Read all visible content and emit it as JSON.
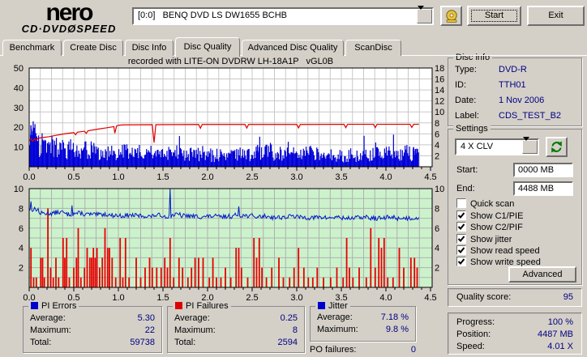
{
  "window": {
    "logo": {
      "name": "nero",
      "cd": "CD·DVD",
      "bolt": "Ø",
      "speed": "SPEED"
    },
    "drive_select": "[0:0]   BENQ DVD LS DW1655 BCHB",
    "start_button": "Start",
    "exit_button": "Exit"
  },
  "tabs": [
    {
      "label": "Benchmark",
      "active": false
    },
    {
      "label": "Create Disc",
      "active": false
    },
    {
      "label": "Disc Info",
      "active": false
    },
    {
      "label": "Disc Quality",
      "active": true
    },
    {
      "label": "Advanced Disc Quality",
      "active": false
    },
    {
      "label": "ScanDisc",
      "active": false
    }
  ],
  "disc_info": {
    "title": "Disc info",
    "rows": [
      {
        "label": "Type:",
        "value": "DVD-R"
      },
      {
        "label": "ID:",
        "value": "TTH01"
      },
      {
        "label": "Date:",
        "value": "1 Nov 2006"
      },
      {
        "label": "Label:",
        "value": "CDS_TEST_B2"
      }
    ]
  },
  "settings": {
    "title": "Settings",
    "speed_select": "4 X CLV",
    "start_label": "Start:",
    "start_value": "0000 MB",
    "end_label": "End:",
    "end_value": "4488 MB",
    "checkboxes": [
      {
        "label": "Quick scan",
        "checked": false
      },
      {
        "label": "Show C1/PIE",
        "checked": true
      },
      {
        "label": "Show C2/PIF",
        "checked": true
      },
      {
        "label": "Show jitter",
        "checked": true
      },
      {
        "label": "Show read speed",
        "checked": true
      },
      {
        "label": "Show write speed",
        "checked": true
      }
    ],
    "advanced_button": "Advanced"
  },
  "quality": {
    "label": "Quality score:",
    "value": "95"
  },
  "progress": {
    "rows": [
      {
        "label": "Progress:",
        "value": "100 %"
      },
      {
        "label": "Position:",
        "value": "4487 MB"
      },
      {
        "label": "Speed:",
        "value": "4.01 X"
      }
    ]
  },
  "stats": {
    "pi_errors": {
      "title": "PI Errors",
      "color": "#0000cc",
      "rows": [
        {
          "label": "Average:",
          "value": "5.30"
        },
        {
          "label": "Maximum:",
          "value": "22"
        },
        {
          "label": "Total:",
          "value": "59738"
        }
      ]
    },
    "pi_failures": {
      "title": "PI Failures",
      "color": "#dd0000",
      "rows": [
        {
          "label": "Average:",
          "value": "0.25"
        },
        {
          "label": "Maximum:",
          "value": "8"
        },
        {
          "label": "Total:",
          "value": "2594"
        }
      ]
    },
    "jitter": {
      "title": "Jitter",
      "color": "#0000cc",
      "rows": [
        {
          "label": "Average:",
          "value": "7.18 %"
        },
        {
          "label": "Maximum:",
          "value": "9.8 %"
        }
      ]
    },
    "po_failures": {
      "label": "PO failures:",
      "value": "0"
    }
  },
  "chart_data": [
    {
      "type": "bar",
      "title": "recorded with LITE-ON DVDRW LH-18A1P   vGL0B",
      "x_range": [
        0,
        4.5
      ],
      "x_ticks": [
        "0.0",
        "0.5",
        "1.0",
        "1.5",
        "2.0",
        "2.5",
        "3.0",
        "3.5",
        "4.0",
        "4.5"
      ],
      "data_end": 4.37,
      "left_axis": {
        "series": "PI Errors",
        "range": [
          0,
          50
        ],
        "ticks": [
          10,
          20,
          30,
          40,
          50
        ]
      },
      "right_axis": {
        "series": "Read speed (X)",
        "range": [
          0,
          18
        ],
        "ticks": [
          2,
          4,
          6,
          8,
          10,
          12,
          14,
          16,
          18
        ]
      },
      "bg": "#ffffff",
      "grid": "#c8c8c8",
      "bar_color": "#0000d8",
      "line_color": "#e00000",
      "noise_seed": 77,
      "pie_envelope": [
        15,
        12,
        10,
        9,
        8.5,
        7.5,
        8,
        7.5,
        7,
        7.5,
        7,
        6.5,
        7,
        6.5,
        6,
        6.5,
        7,
        6.5,
        6,
        6.5,
        6,
        6,
        6.5,
        6,
        5.5,
        6.5,
        7,
        7.5,
        6.5,
        6,
        6,
        6.5,
        6,
        5.5,
        6,
        5.5,
        6,
        6.5,
        6,
        6,
        6.5,
        6,
        7,
        8
      ],
      "pie_peaks": [
        [
          0.02,
          21
        ],
        [
          0.04,
          18
        ],
        [
          0.06,
          16
        ],
        [
          0.08,
          15
        ],
        [
          2.56,
          11
        ],
        [
          2.58,
          10
        ],
        [
          4.31,
          10
        ],
        [
          4.33,
          9
        ]
      ],
      "gray_markers": [
        0.13,
        0.27
      ],
      "speed_line": [
        [
          0,
          13.2
        ],
        [
          0.02,
          14
        ],
        [
          0.04,
          13
        ],
        [
          0.06,
          14.2
        ],
        [
          0.08,
          13.4
        ],
        [
          0.1,
          14.4
        ],
        [
          0.15,
          14.8
        ],
        [
          0.22,
          15.2
        ],
        [
          0.3,
          15.9
        ],
        [
          0.4,
          16.7
        ],
        [
          0.5,
          17.3
        ],
        [
          0.52,
          16.2
        ],
        [
          0.54,
          17.5
        ],
        [
          0.62,
          18.0
        ],
        [
          0.64,
          16.9
        ],
        [
          0.66,
          18.2
        ],
        [
          0.75,
          18.9
        ],
        [
          0.85,
          19.6
        ],
        [
          0.95,
          20.3
        ],
        [
          0.96,
          17.0
        ],
        [
          0.98,
          20.6
        ],
        [
          1.0,
          21.0
        ],
        [
          1.05,
          21.2
        ],
        [
          1.38,
          21.3
        ],
        [
          1.4,
          12.2
        ],
        [
          1.42,
          21.3
        ],
        [
          1.9,
          21.4
        ],
        [
          1.92,
          19.5
        ],
        [
          1.94,
          21.4
        ],
        [
          2.42,
          21.4
        ],
        [
          2.44,
          19.6
        ],
        [
          2.46,
          21.4
        ],
        [
          3.0,
          21.4
        ],
        [
          3.02,
          19.7
        ],
        [
          3.04,
          21.4
        ],
        [
          3.53,
          21.5
        ],
        [
          3.55,
          19.8
        ],
        [
          3.57,
          21.5
        ],
        [
          3.86,
          21.5
        ],
        [
          3.88,
          19.8
        ],
        [
          3.9,
          21.5
        ],
        [
          4.27,
          21.5
        ],
        [
          4.29,
          19.9
        ],
        [
          4.31,
          21.5
        ],
        [
          4.37,
          21.5
        ]
      ]
    },
    {
      "type": "line+bar",
      "x_range": [
        0,
        4.5
      ],
      "x_ticks": [
        "0.0",
        "0.5",
        "1.0",
        "1.5",
        "2.0",
        "2.5",
        "3.0",
        "3.5",
        "4.0",
        "4.5"
      ],
      "data_end": 4.37,
      "left_axis": {
        "series": "Jitter (%) / PI Failures",
        "range": [
          0,
          10
        ],
        "ticks": [
          2,
          4,
          6,
          8,
          10
        ]
      },
      "right_axis": {
        "range": [
          0,
          10
        ],
        "ticks": [
          2,
          4,
          6,
          8,
          10
        ]
      },
      "bg": "#ccf2cc",
      "grid": "#b0b0b0",
      "bar_color": "#e80000",
      "line_color": "#0018c8",
      "noise_seed": 13,
      "jitter_envelope": [
        7.9,
        7.5,
        7.5,
        7.6,
        7.4,
        7.5,
        7.4,
        7.35,
        7.4,
        7.3,
        7.25,
        7.3,
        7.25,
        7.2,
        7.3,
        7.2,
        7.35,
        7.25,
        7.2,
        7.15,
        7.2,
        7.15,
        7.2,
        7.3,
        7.25,
        7.15,
        7.2,
        7.1,
        7.1,
        7.2,
        7.1,
        7.05,
        7.1,
        7.05,
        7.1,
        7.0,
        7.05,
        7.1,
        7.0,
        7.0,
        7.1,
        7.0,
        7.0,
        7.05
      ],
      "jitter_spikes": [
        [
          0.02,
          8.7
        ],
        [
          0.48,
          8.3
        ],
        [
          1.58,
          10
        ],
        [
          2.35,
          8.2
        ]
      ],
      "pif_bars": [
        [
          0.02,
          4
        ],
        [
          0.05,
          1
        ],
        [
          0.08,
          1
        ],
        [
          0.13,
          3
        ],
        [
          0.15,
          3
        ],
        [
          0.17,
          1
        ],
        [
          0.21,
          8
        ],
        [
          0.24,
          2
        ],
        [
          0.27,
          1
        ],
        [
          0.3,
          3
        ],
        [
          0.33,
          1
        ],
        [
          0.38,
          5
        ],
        [
          0.4,
          3
        ],
        [
          0.42,
          5
        ],
        [
          0.45,
          1
        ],
        [
          0.5,
          2
        ],
        [
          0.53,
          3
        ],
        [
          0.55,
          6
        ],
        [
          0.58,
          1
        ],
        [
          0.62,
          2
        ],
        [
          0.65,
          4
        ],
        [
          0.68,
          3
        ],
        [
          0.7,
          3
        ],
        [
          0.72,
          4
        ],
        [
          0.74,
          3
        ],
        [
          0.76,
          4
        ],
        [
          0.79,
          2
        ],
        [
          0.82,
          3
        ],
        [
          0.85,
          6
        ],
        [
          0.88,
          4
        ],
        [
          0.9,
          4
        ],
        [
          0.93,
          3
        ],
        [
          0.97,
          1
        ],
        [
          1.02,
          5
        ],
        [
          1.05,
          1
        ],
        [
          1.08,
          5
        ],
        [
          1.12,
          1
        ],
        [
          1.2,
          3
        ],
        [
          1.25,
          1
        ],
        [
          1.3,
          2
        ],
        [
          1.35,
          3
        ],
        [
          1.38,
          2
        ],
        [
          1.43,
          2
        ],
        [
          1.48,
          2
        ],
        [
          1.52,
          3
        ],
        [
          1.55,
          2
        ],
        [
          1.58,
          5
        ],
        [
          1.62,
          1
        ],
        [
          1.68,
          3
        ],
        [
          1.72,
          2
        ],
        [
          1.78,
          1
        ],
        [
          1.82,
          2
        ],
        [
          1.86,
          3
        ],
        [
          1.9,
          3
        ],
        [
          1.95,
          3
        ],
        [
          2.02,
          1
        ],
        [
          2.06,
          3
        ],
        [
          2.1,
          1
        ],
        [
          2.15,
          1
        ],
        [
          2.2,
          2
        ],
        [
          2.26,
          1
        ],
        [
          2.32,
          4
        ],
        [
          2.35,
          4
        ],
        [
          2.38,
          2
        ],
        [
          2.45,
          1
        ],
        [
          2.52,
          5
        ],
        [
          2.55,
          3
        ],
        [
          2.58,
          5
        ],
        [
          2.61,
          2
        ],
        [
          2.66,
          1
        ],
        [
          2.72,
          2
        ],
        [
          2.8,
          3
        ],
        [
          2.85,
          1
        ],
        [
          2.92,
          1
        ],
        [
          2.97,
          2
        ],
        [
          3.02,
          4
        ],
        [
          3.08,
          2
        ],
        [
          3.13,
          1
        ],
        [
          3.18,
          1
        ],
        [
          3.23,
          2
        ],
        [
          3.3,
          1
        ],
        [
          3.38,
          1
        ],
        [
          3.45,
          2
        ],
        [
          3.52,
          1
        ],
        [
          3.56,
          5
        ],
        [
          3.59,
          2
        ],
        [
          3.63,
          1
        ],
        [
          3.7,
          2
        ],
        [
          3.78,
          1
        ],
        [
          3.83,
          6
        ],
        [
          3.88,
          2
        ],
        [
          3.92,
          5
        ],
        [
          3.95,
          4
        ],
        [
          3.98,
          5
        ],
        [
          4.02,
          1
        ],
        [
          4.08,
          1
        ],
        [
          4.15,
          4
        ],
        [
          4.2,
          2
        ],
        [
          4.28,
          3
        ],
        [
          4.32,
          3
        ],
        [
          4.35,
          2
        ]
      ]
    }
  ]
}
